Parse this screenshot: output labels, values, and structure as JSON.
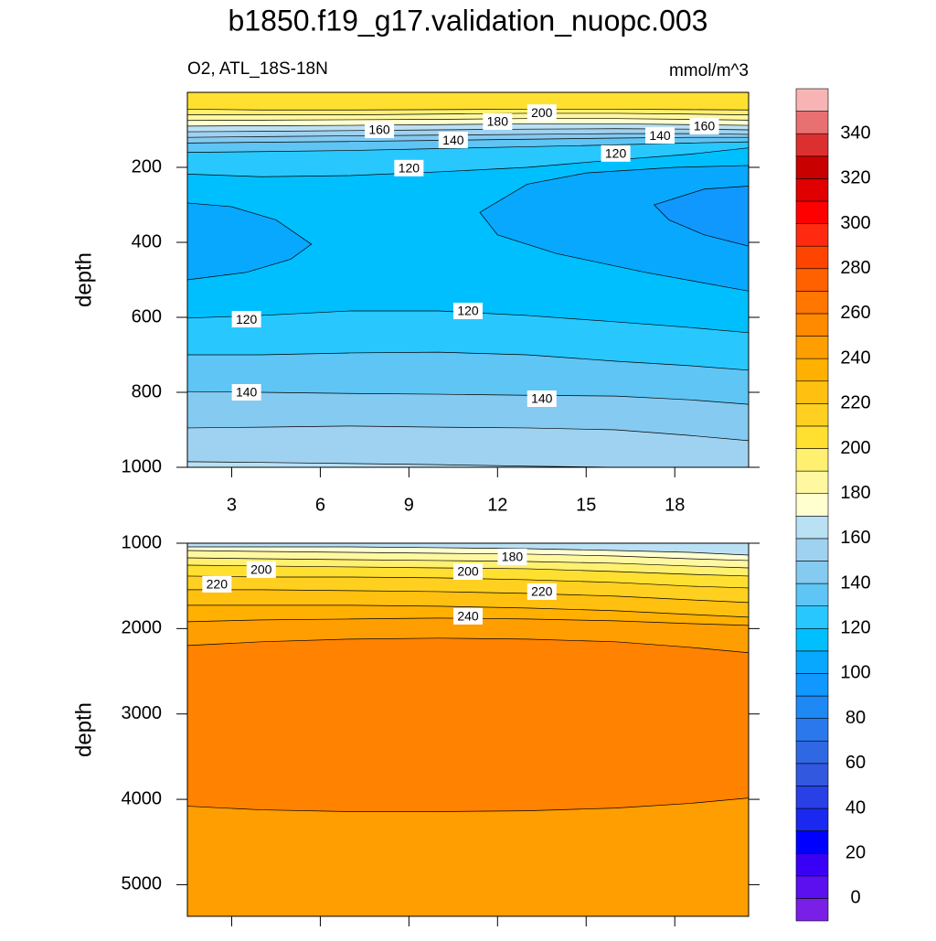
{
  "title": "b1850.f19_g17.validation_nuopc.003",
  "left_string": "O2, ATL_18S-18N",
  "right_string": "mmol/m^3",
  "colorbar": {
    "levels": [
      0,
      10,
      20,
      30,
      40,
      50,
      60,
      70,
      80,
      90,
      100,
      110,
      120,
      130,
      140,
      150,
      160,
      170,
      180,
      190,
      200,
      210,
      220,
      230,
      240,
      250,
      260,
      270,
      280,
      290,
      300,
      310,
      320,
      330,
      340,
      350
    ],
    "colors": [
      "#7a1fe6",
      "#5c10f0",
      "#3a00f5",
      "#0000ff",
      "#1a28f0",
      "#2840e6",
      "#3258e0",
      "#3068e4",
      "#2a78ec",
      "#1e88f5",
      "#1098ff",
      "#08a8ff",
      "#00bfff",
      "#28c8ff",
      "#5ec5f5",
      "#85caf0",
      "#9fd2f0",
      "#bae0f4",
      "#ffffd0",
      "#fff8a0",
      "#fff070",
      "#ffe030",
      "#ffd020",
      "#ffc010",
      "#ffb000",
      "#ff9e00",
      "#ff8a00",
      "#ff7600",
      "#ff6000",
      "#ff4400",
      "#ff2a10",
      "#ff0000",
      "#e00000",
      "#c80000",
      "#dc3030",
      "#e87070",
      "#f8b4b4"
    ],
    "ticks": [
      0,
      20,
      40,
      60,
      80,
      100,
      120,
      140,
      160,
      180,
      200,
      220,
      240,
      260,
      280,
      300,
      320,
      340
    ]
  },
  "chart_data": [
    {
      "type": "contour",
      "y_label": "depth",
      "xlim": [
        1.5,
        20.5
      ],
      "xticks": [
        3,
        6,
        9,
        12,
        15,
        18
      ],
      "show_xtick_labels": true,
      "ylim": [
        1000,
        0
      ],
      "yticks": [
        200,
        400,
        600,
        800,
        1000
      ],
      "top_fill": "#ffe030",
      "contours": [
        {
          "x": [
            1.5,
            4,
            7,
            10,
            13,
            16,
            18.5,
            20.5
          ],
          "depth": [
            45,
            47,
            47,
            46,
            45,
            45,
            46,
            47
          ],
          "fill": "#fff070"
        },
        {
          "x": [
            1.5,
            4,
            7,
            10,
            13,
            16,
            18.5,
            20.5
          ],
          "depth": [
            60,
            60,
            60,
            58,
            56,
            56,
            58,
            60
          ],
          "fill": "#fff8a0"
        },
        {
          "x": [
            1.5,
            4,
            7,
            10,
            13,
            16,
            18.5,
            20.5
          ],
          "depth": [
            75,
            74,
            73,
            72,
            70,
            70,
            72,
            74
          ],
          "fill": "#ffffd0"
        },
        {
          "x": [
            1.5,
            4,
            7,
            10,
            13,
            16,
            18.5,
            20.5
          ],
          "depth": [
            90,
            89,
            88,
            86,
            84,
            84,
            86,
            88
          ],
          "fill": "#bae0f4"
        },
        {
          "x": [
            1.5,
            4,
            7,
            10,
            13,
            16,
            18.5,
            20.5
          ],
          "depth": [
            105,
            104,
            102,
            100,
            98,
            97,
            98,
            100
          ],
          "fill": "#9fd2f0"
        },
        {
          "x": [
            1.5,
            4,
            7,
            10,
            13,
            16,
            18.5,
            20.5
          ],
          "depth": [
            120,
            118,
            116,
            114,
            112,
            110,
            110,
            112
          ],
          "fill": "#85caf0"
        },
        {
          "x": [
            1.5,
            4,
            7,
            10,
            13,
            16,
            18.5,
            20.5
          ],
          "depth": [
            135,
            133,
            131,
            128,
            125,
            122,
            120,
            120
          ],
          "fill": "#5ec5f5"
        },
        {
          "x": [
            1.5,
            4,
            7,
            10,
            13,
            16,
            18.5,
            20.5
          ],
          "depth": [
            160,
            158,
            155,
            150,
            145,
            140,
            135,
            132
          ],
          "fill": "#28c8ff"
        },
        {
          "x": [
            1.5,
            4,
            7,
            10,
            13,
            16,
            18.5,
            20.5
          ],
          "depth": [
            218,
            225,
            222,
            212,
            200,
            180,
            165,
            148
          ],
          "fill": "#00bfff"
        },
        {
          "x": [
            1.5,
            4,
            7,
            10,
            13,
            16,
            18.5,
            20.5
          ],
          "depth": [
            602,
            595,
            583,
            583,
            595,
            612,
            627,
            641
          ],
          "fill": "#28c8ff"
        },
        {
          "x": [
            1.5,
            4,
            7,
            10,
            13,
            16,
            18.5,
            20.5
          ],
          "depth": [
            700,
            700,
            695,
            693,
            700,
            717,
            729,
            741
          ],
          "fill": "#5ec5f5"
        },
        {
          "x": [
            1.5,
            4,
            7,
            10,
            13,
            16,
            18.5,
            20.5
          ],
          "depth": [
            798,
            800,
            803,
            805,
            808,
            810,
            820,
            832
          ],
          "fill": "#85caf0"
        },
        {
          "x": [
            1.5,
            4,
            7,
            10,
            13,
            16,
            18.5,
            20.5
          ],
          "depth": [
            895,
            893,
            890,
            893,
            895,
            900,
            915,
            929
          ],
          "fill": "#9fd2f0"
        },
        {
          "x": [
            1.5,
            4,
            7,
            10,
            13,
            16,
            18.5,
            20.5
          ],
          "depth": [
            985,
            987,
            990,
            993,
            997,
            1000,
            1000,
            1000
          ],
          "fill": "#bae0f4"
        }
      ],
      "blobs": [
        {
          "x": [
            1.5,
            3,
            4.5,
            5.7,
            5,
            3.5,
            1.5
          ],
          "depth": [
            295,
            305,
            340,
            405,
            445,
            480,
            500
          ],
          "fill": "#08a8ff"
        },
        {
          "x": [
            20.5,
            18,
            15,
            13,
            11.4,
            12,
            14,
            17,
            20.5
          ],
          "depth": [
            195,
            200,
            215,
            245,
            320,
            380,
            430,
            480,
            530
          ],
          "fill": "#08a8ff"
        },
        {
          "x": [
            20.5,
            19,
            17.3,
            17.8,
            19,
            20.5
          ],
          "depth": [
            250,
            258,
            300,
            340,
            380,
            410
          ],
          "fill": "#1098ff"
        }
      ],
      "labels": [
        {
          "value": 160,
          "x": 8.0,
          "depth": 100
        },
        {
          "value": 140,
          "x": 10.5,
          "depth": 127
        },
        {
          "value": 180,
          "x": 12.0,
          "depth": 78
        },
        {
          "value": 200,
          "x": 13.5,
          "depth": 54
        },
        {
          "value": 120,
          "x": 9.0,
          "depth": 202
        },
        {
          "value": 140,
          "x": 17.5,
          "depth": 115
        },
        {
          "value": 160,
          "x": 19.0,
          "depth": 90
        },
        {
          "value": 120,
          "x": 16.0,
          "depth": 163
        },
        {
          "value": 120,
          "x": 3.5,
          "depth": 605
        },
        {
          "value": 120,
          "x": 11.0,
          "depth": 583
        },
        {
          "value": 140,
          "x": 3.5,
          "depth": 800
        },
        {
          "value": 140,
          "x": 13.5,
          "depth": 817
        }
      ]
    },
    {
      "type": "contour",
      "y_label": "depth",
      "xlim": [
        1.5,
        20.5
      ],
      "xticks": [
        3,
        6,
        9,
        12,
        15,
        18
      ],
      "show_xtick_labels": false,
      "ylim": [
        5370,
        1000
      ],
      "yticks": [
        1000,
        2000,
        3000,
        4000,
        5000
      ],
      "top_fill": "#bae0f4",
      "contours": [
        {
          "x": [
            1.5,
            4,
            7,
            10,
            13,
            16,
            18.5,
            20.5
          ],
          "depth": [
            1043,
            1043,
            1043,
            1053,
            1064,
            1086,
            1107,
            1139
          ],
          "fill": "#ffffd0"
        },
        {
          "x": [
            1.5,
            4,
            7,
            10,
            13,
            16,
            18.5,
            20.5
          ],
          "depth": [
            1086,
            1096,
            1107,
            1118,
            1128,
            1150,
            1182,
            1203
          ],
          "fill": "#fff8a0"
        },
        {
          "x": [
            1.5,
            4,
            7,
            10,
            13,
            16,
            18.5,
            20.5
          ],
          "depth": [
            1171,
            1182,
            1193,
            1203,
            1214,
            1235,
            1267,
            1289
          ],
          "fill": "#fff070"
        },
        {
          "x": [
            1.5,
            4,
            7,
            10,
            13,
            16,
            18.5,
            20.5
          ],
          "depth": [
            1257,
            1267,
            1278,
            1289,
            1299,
            1332,
            1364,
            1385
          ],
          "fill": "#ffe030"
        },
        {
          "x": [
            1.5,
            4,
            7,
            10,
            13,
            16,
            18.5,
            20.5
          ],
          "depth": [
            1385,
            1396,
            1396,
            1406,
            1428,
            1460,
            1503,
            1524
          ],
          "fill": "#ffd020"
        },
        {
          "x": [
            1.5,
            4,
            7,
            10,
            13,
            16,
            18.5,
            20.5
          ],
          "depth": [
            1545,
            1545,
            1556,
            1567,
            1588,
            1620,
            1663,
            1695
          ],
          "fill": "#ffc010"
        },
        {
          "x": [
            1.5,
            4,
            7,
            10,
            13,
            16,
            18.5,
            20.5
          ],
          "depth": [
            1727,
            1727,
            1727,
            1738,
            1759,
            1791,
            1834,
            1866
          ],
          "fill": "#ffb000"
        },
        {
          "x": [
            1.5,
            4,
            7,
            10,
            13,
            16,
            18.5,
            20.5
          ],
          "depth": [
            1920,
            1898,
            1888,
            1877,
            1888,
            1909,
            1941,
            1963
          ],
          "fill": "#ff9e00"
        },
        {
          "x": [
            1.5,
            4,
            7,
            10,
            13,
            16,
            18.5,
            20.5
          ],
          "depth": [
            2198,
            2155,
            2123,
            2112,
            2123,
            2155,
            2219,
            2283
          ],
          "fill": "#ff8200"
        },
        {
          "x": [
            1.5,
            4,
            7,
            10,
            13,
            16,
            18.5,
            20.5
          ],
          "depth": [
            4080,
            4123,
            4144,
            4144,
            4134,
            4102,
            4048,
            3984
          ],
          "fill": "#ff9e00"
        }
      ],
      "blobs": [],
      "labels": [
        {
          "value": 180,
          "x": 12.5,
          "depth": 1160
        },
        {
          "value": 200,
          "x": 4.0,
          "depth": 1310
        },
        {
          "value": 200,
          "x": 11.0,
          "depth": 1332
        },
        {
          "value": 220,
          "x": 2.5,
          "depth": 1481
        },
        {
          "value": 220,
          "x": 13.5,
          "depth": 1567
        },
        {
          "value": 240,
          "x": 11.0,
          "depth": 1856
        }
      ]
    }
  ]
}
